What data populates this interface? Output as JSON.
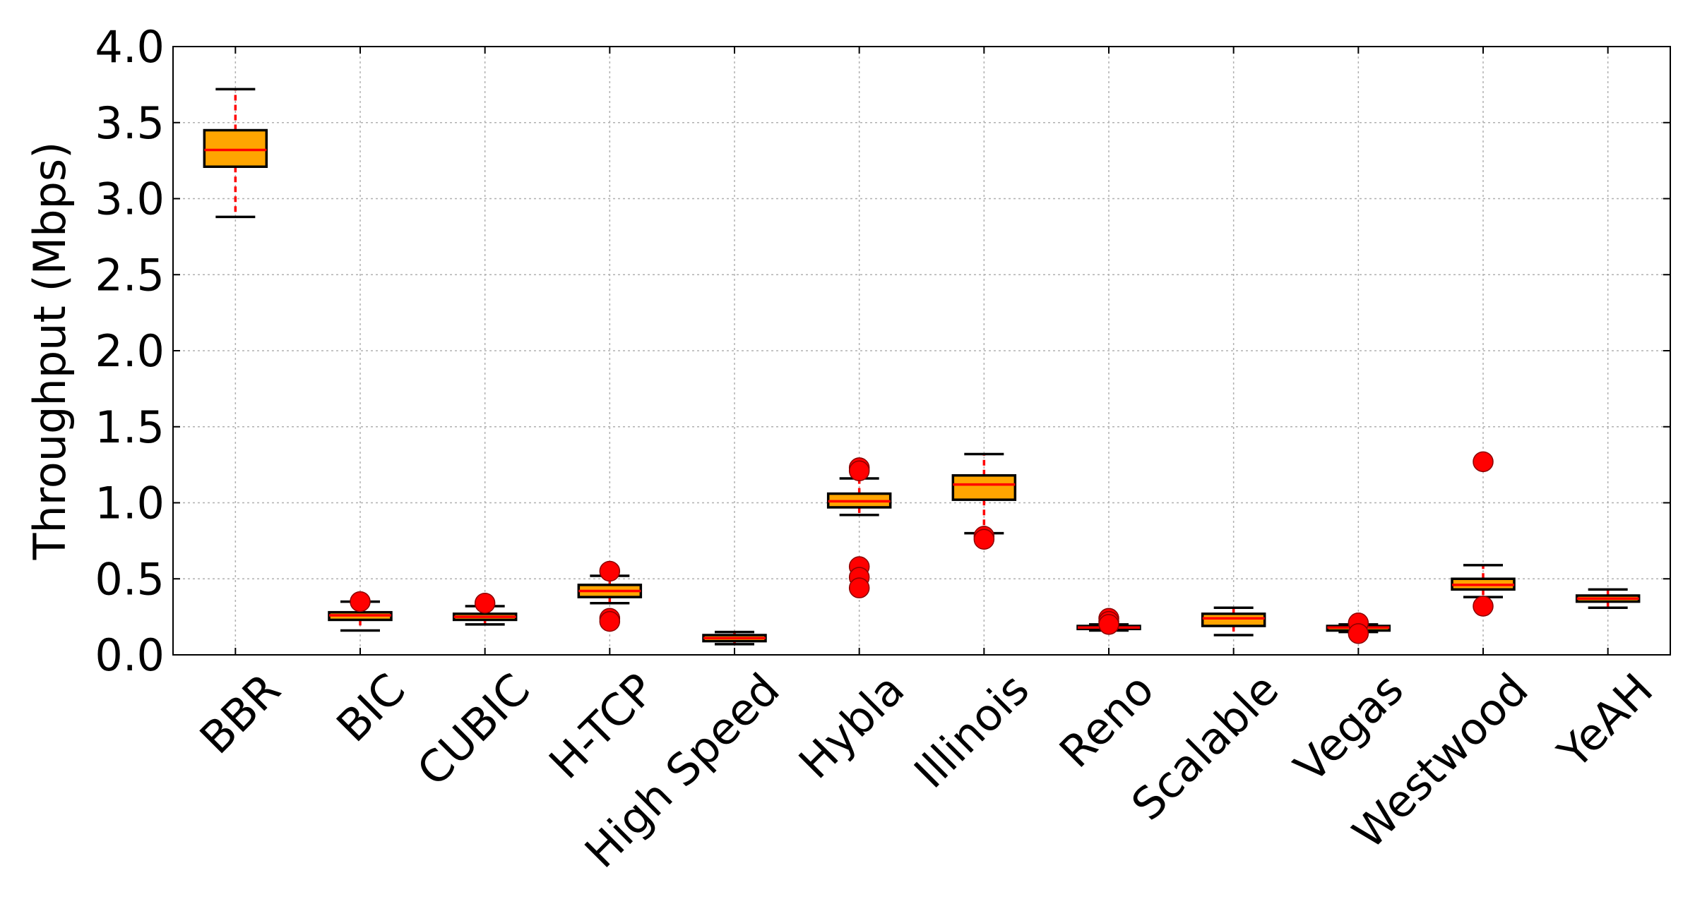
{
  "chart_data": {
    "type": "box",
    "title": "",
    "xlabel": "",
    "ylabel": "Throughput (Mbps)",
    "ylim": [
      0,
      4.0
    ],
    "yticks": [
      0.0,
      0.5,
      1.0,
      1.5,
      2.0,
      2.5,
      3.0,
      3.5,
      4.0
    ],
    "ytick_labels": [
      "0.0",
      "0.5",
      "1.0",
      "1.5",
      "2.0",
      "2.5",
      "3.0",
      "3.5",
      "4.0"
    ],
    "grid": true,
    "colors": {
      "box_fill": "#FFA500",
      "box_edge": "#000000",
      "median": "#FF0000",
      "whisker": "#FF0000",
      "cap": "#000000",
      "flier": "#FF0000",
      "grid": "#b0b0b0"
    },
    "categories": [
      "BBR",
      "BIC",
      "CUBIC",
      "H-TCP",
      "High Speed",
      "Hybla",
      "Illinois",
      "Reno",
      "Scalable",
      "Vegas",
      "Westwood",
      "YeAH"
    ],
    "boxes": [
      {
        "label": "BBR",
        "whisker_low": 2.88,
        "q1": 3.21,
        "median": 3.32,
        "q3": 3.45,
        "whisker_high": 3.72,
        "outliers": []
      },
      {
        "label": "BIC",
        "whisker_low": 0.16,
        "q1": 0.23,
        "median": 0.26,
        "q3": 0.28,
        "whisker_high": 0.35,
        "outliers": [
          0.35
        ]
      },
      {
        "label": "CUBIC",
        "whisker_low": 0.2,
        "q1": 0.23,
        "median": 0.25,
        "q3": 0.27,
        "whisker_high": 0.32,
        "outliers": [
          0.34
        ]
      },
      {
        "label": "H-TCP",
        "whisker_low": 0.34,
        "q1": 0.38,
        "median": 0.42,
        "q3": 0.46,
        "whisker_high": 0.52,
        "outliers": [
          0.55,
          0.24,
          0.22
        ]
      },
      {
        "label": "High Speed",
        "whisker_low": 0.07,
        "q1": 0.09,
        "median": 0.11,
        "q3": 0.13,
        "whisker_high": 0.15,
        "outliers": []
      },
      {
        "label": "Hybla",
        "whisker_low": 0.92,
        "q1": 0.97,
        "median": 1.01,
        "q3": 1.06,
        "whisker_high": 1.16,
        "outliers": [
          1.23,
          1.21,
          0.58,
          0.51,
          0.44
        ]
      },
      {
        "label": "Illinois",
        "whisker_low": 0.8,
        "q1": 1.02,
        "median": 1.12,
        "q3": 1.18,
        "whisker_high": 1.32,
        "outliers": [
          0.78,
          0.76
        ]
      },
      {
        "label": "Reno",
        "whisker_low": 0.16,
        "q1": 0.17,
        "median": 0.18,
        "q3": 0.19,
        "whisker_high": 0.2,
        "outliers": [
          0.24,
          0.22,
          0.2
        ]
      },
      {
        "label": "Scalable",
        "whisker_low": 0.13,
        "q1": 0.19,
        "median": 0.24,
        "q3": 0.27,
        "whisker_high": 0.31,
        "outliers": []
      },
      {
        "label": "Vegas",
        "whisker_low": 0.15,
        "q1": 0.16,
        "median": 0.18,
        "q3": 0.19,
        "whisker_high": 0.2,
        "outliers": [
          0.21,
          0.14
        ]
      },
      {
        "label": "Westwood",
        "whisker_low": 0.38,
        "q1": 0.43,
        "median": 0.46,
        "q3": 0.5,
        "whisker_high": 0.59,
        "outliers": [
          1.27,
          0.32
        ]
      },
      {
        "label": "YeAH",
        "whisker_low": 0.31,
        "q1": 0.35,
        "median": 0.37,
        "q3": 0.39,
        "whisker_high": 0.43,
        "outliers": []
      }
    ]
  }
}
